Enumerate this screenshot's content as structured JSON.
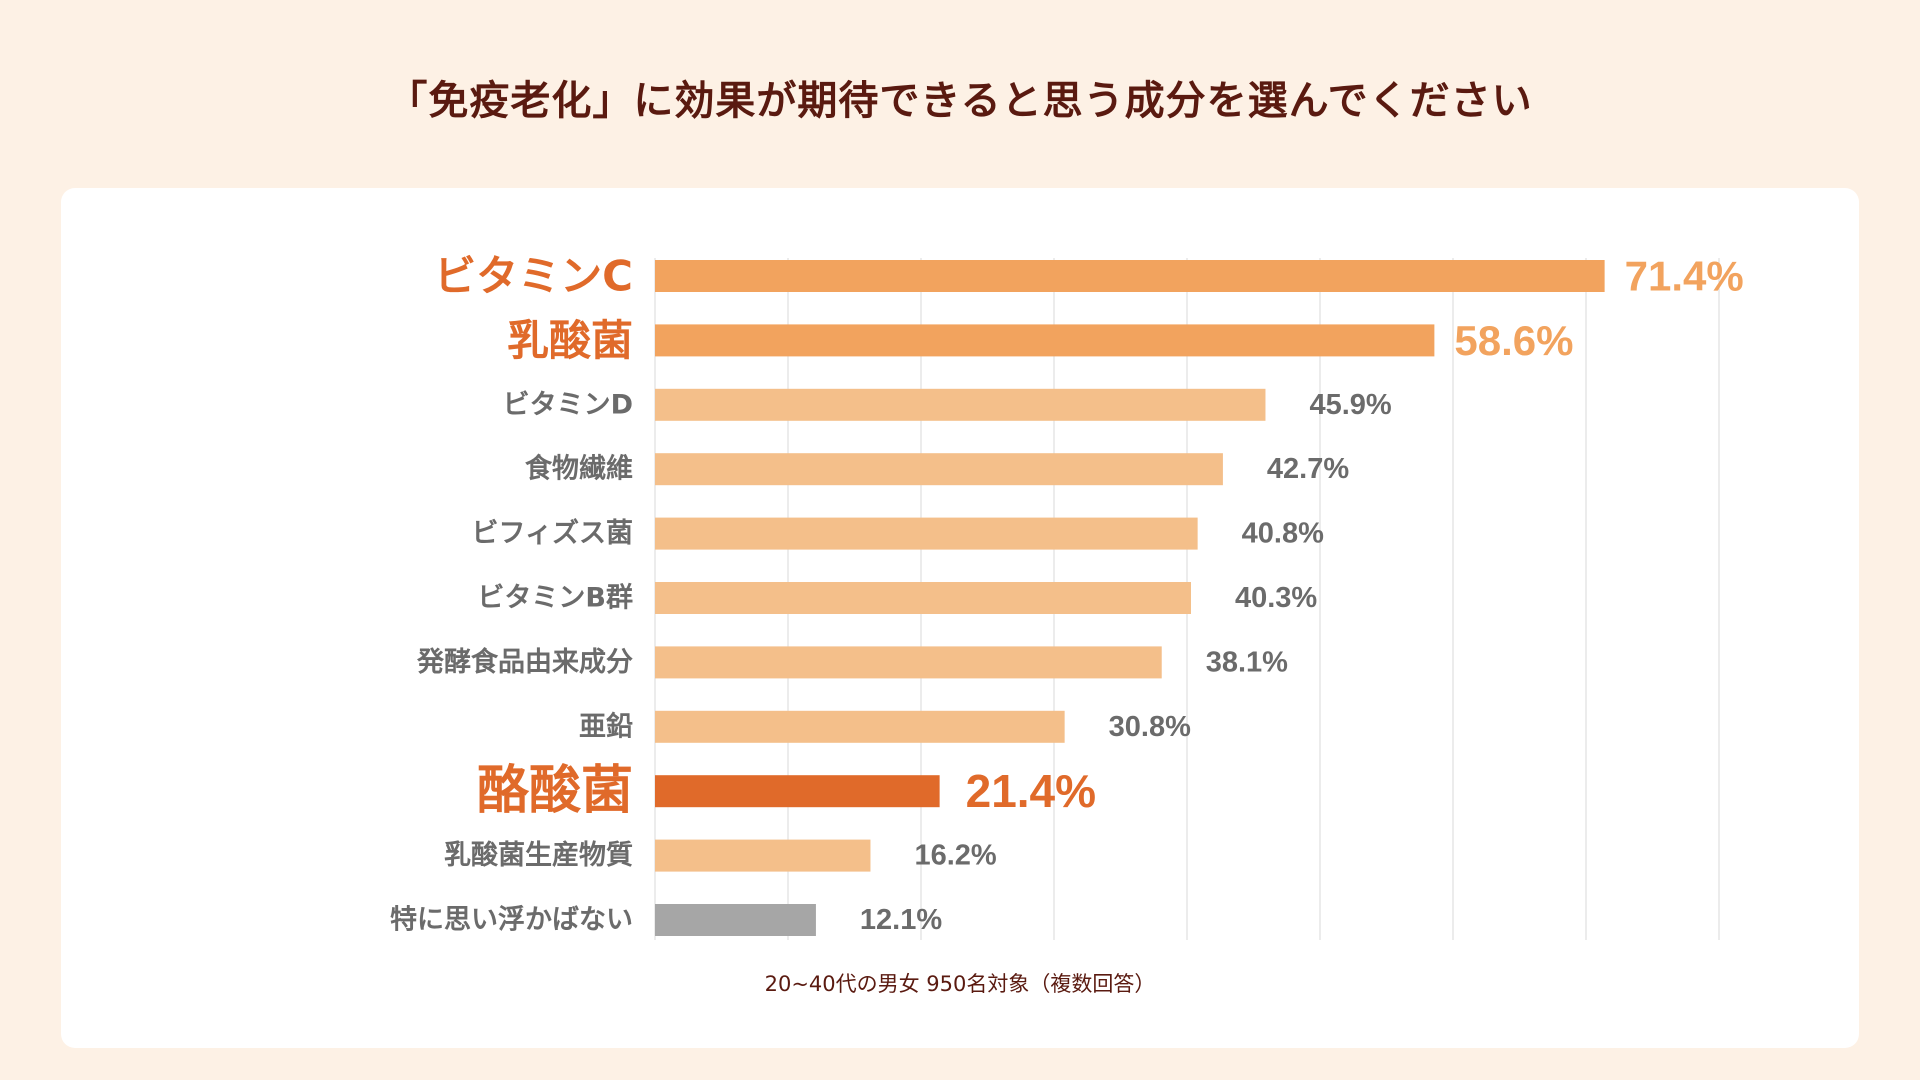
{
  "title": "「免疫老化」に効果が期待できると思う成分を選んでください",
  "footnote": "20~40代の男女 950名対象（複数回答）",
  "colors": {
    "background": "#fdf1e5",
    "card": "#ffffff",
    "title_text": "#5a1a10",
    "grid": "#d9d9d9",
    "bar_highlight": "#f2a35e",
    "bar_focus": "#e06a2a",
    "bar_normal": "#f4bf8a",
    "bar_none": "#a6a6a6",
    "label_highlight": "#e06a2a",
    "value_highlight": "#f2a35e",
    "label_normal": "#6b6b6b"
  },
  "chart_data": {
    "type": "bar",
    "orientation": "horizontal",
    "title": "「免疫老化」に効果が期待できると思う成分を選んでください",
    "xlim": [
      0,
      80
    ],
    "grid": true,
    "unit": "%",
    "categories": [
      "ビタミンC",
      "乳酸菌",
      "ビタミンD",
      "食物繊維",
      "ビフィズス菌",
      "ビタミンB群",
      "発酵食品由来成分",
      "亜鉛",
      "酪酸菌",
      "乳酸菌生産物質",
      "特に思い浮かばない"
    ],
    "values": [
      71.4,
      58.6,
      45.9,
      42.7,
      40.8,
      40.3,
      38.1,
      30.8,
      21.4,
      16.2,
      12.1
    ],
    "value_labels": [
      "71.4%",
      "58.6%",
      "45.9%",
      "42.7%",
      "40.8%",
      "40.3%",
      "38.1%",
      "30.8%",
      "21.4%",
      "16.2%",
      "12.1%"
    ],
    "emphasis": [
      "highlight",
      "highlight",
      "normal",
      "normal",
      "normal",
      "normal",
      "normal",
      "normal",
      "focus",
      "normal",
      "none"
    ]
  }
}
